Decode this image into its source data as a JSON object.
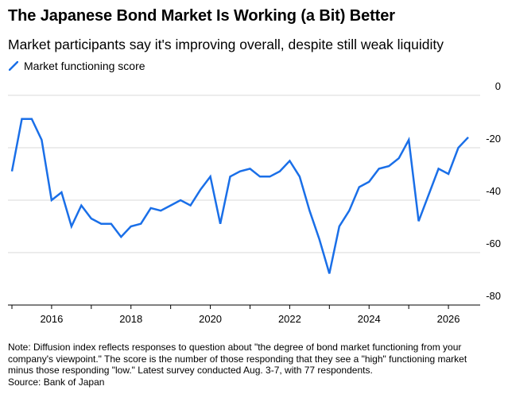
{
  "title": "The Japanese Bond Market Is Working (a Bit) Better",
  "subtitle": "Market participants say it's improving overall, despite still weak liquidity",
  "legend": {
    "label": "Market functioning score"
  },
  "colors": {
    "line": "#1a6fe8",
    "grid": "#d9d9d9",
    "axis": "#000000"
  },
  "note_lines": [
    "Note: Diffusion index reflects responses to question about \"the degree of bond market functioning from your",
    "company's viewpoint.\" The score is the number of those responding that they see a \"high\" functioning market",
    "minus those responding \"low.\" Latest survey conducted Aug. 3-7, with 77 respondents."
  ],
  "source": "Source: Bank of Japan",
  "chart_data": {
    "type": "line",
    "title": "The Japanese Bond Market Is Working (a Bit) Better",
    "subtitle": "Market participants say it's improving overall, despite still weak liquidity",
    "xlabel": "",
    "ylabel": "",
    "xlim": [
      2014.9,
      2026.8
    ],
    "ylim": [
      -80,
      0
    ],
    "y_axis_position": "right",
    "grid": true,
    "legend_position": "top-left",
    "x_ticks": [
      2016,
      2018,
      2020,
      2022,
      2024,
      2026
    ],
    "x_tick_labels": [
      "2016",
      "2018",
      "2020",
      "2022",
      "2024",
      "2026"
    ],
    "y_ticks": [
      0,
      -20,
      -40,
      -60,
      -80
    ],
    "y_tick_labels": [
      "0",
      "-20",
      "-40",
      "-60",
      "-80"
    ],
    "series": [
      {
        "name": "Market functioning score",
        "x": [
          2015.0,
          2015.25,
          2015.5,
          2015.75,
          2016.0,
          2016.25,
          2016.5,
          2016.75,
          2017.0,
          2017.25,
          2017.5,
          2017.75,
          2018.0,
          2018.25,
          2018.5,
          2018.75,
          2019.0,
          2019.25,
          2019.5,
          2019.75,
          2020.0,
          2020.25,
          2020.5,
          2020.75,
          2021.0,
          2021.25,
          2021.5,
          2021.75,
          2022.0,
          2022.25,
          2022.5,
          2022.75,
          2023.0,
          2023.25,
          2023.5,
          2023.75,
          2024.0,
          2024.25,
          2024.5,
          2024.75,
          2025.0,
          2025.25,
          2025.5,
          2025.75,
          2026.0,
          2026.25,
          2026.5
        ],
        "y": [
          -29,
          -9,
          -9,
          -17,
          -40,
          -37,
          -50,
          -42,
          -47,
          -49,
          -49,
          -54,
          -50,
          -49,
          -43,
          -44,
          -42,
          -40,
          -42,
          -36,
          -31,
          -49,
          -31,
          -29,
          -28,
          -31,
          -31,
          -29,
          -25,
          -31,
          -44,
          -55,
          -68,
          -50,
          -44,
          -35,
          -33,
          -28,
          -27,
          -24,
          -17,
          -48,
          -38,
          -28,
          -30,
          -20,
          -16
        ]
      }
    ]
  }
}
